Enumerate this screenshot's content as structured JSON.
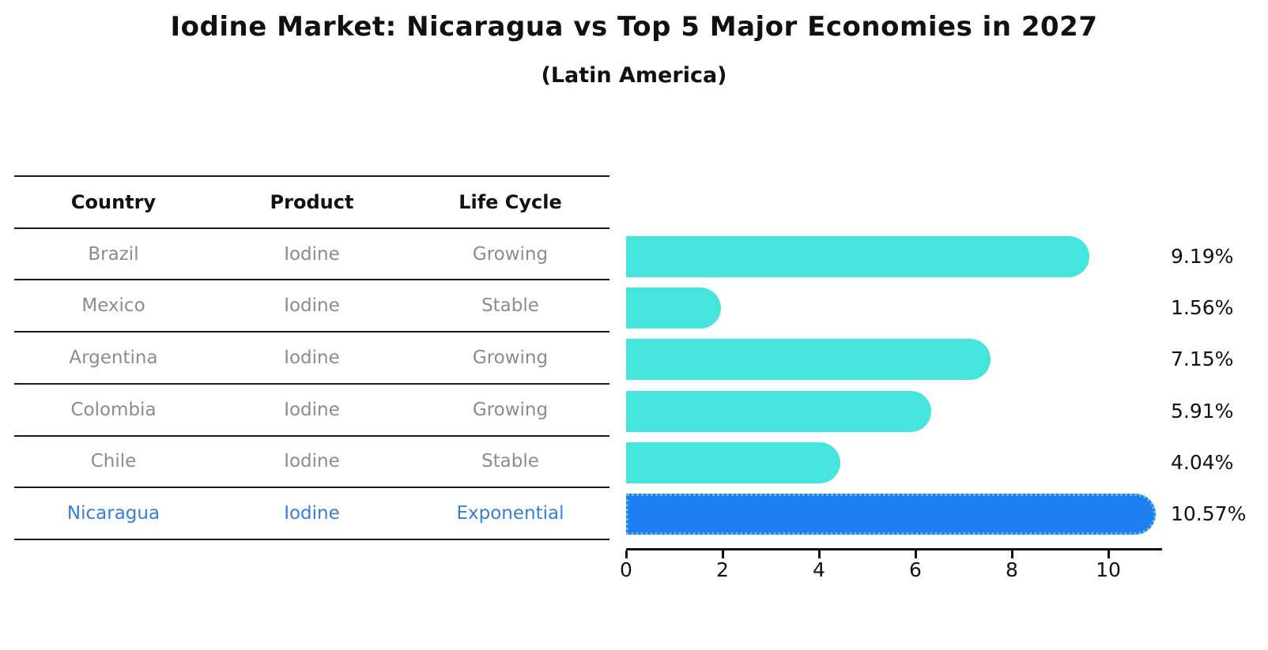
{
  "title": "Iodine Market: Nicaragua vs Top 5 Major Economies in 2027",
  "subtitle": "(Latin America)",
  "table": {
    "headers": [
      "Country",
      "Product",
      "Life Cycle"
    ],
    "rows": [
      {
        "country": "Brazil",
        "product": "Iodine",
        "life_cycle": "Growing"
      },
      {
        "country": "Mexico",
        "product": "Iodine",
        "life_cycle": "Stable"
      },
      {
        "country": "Argentina",
        "product": "Iodine",
        "life_cycle": "Growing"
      },
      {
        "country": "Colombia",
        "product": "Iodine",
        "life_cycle": "Growing"
      },
      {
        "country": "Chile",
        "product": "Iodine",
        "life_cycle": "Stable"
      },
      {
        "country": "Nicaragua",
        "product": "Iodine",
        "life_cycle": "Exponential"
      }
    ],
    "highlighted_row": "Nicaragua"
  },
  "chart_data": {
    "type": "bar",
    "orientation": "horizontal",
    "categories": [
      "Brazil",
      "Mexico",
      "Argentina",
      "Colombia",
      "Chile",
      "Nicaragua"
    ],
    "values": [
      9.19,
      1.56,
      7.15,
      5.91,
      4.04,
      10.57
    ],
    "value_labels": [
      "9.19%",
      "1.56%",
      "7.15%",
      "5.91%",
      "4.04%",
      "10.57%"
    ],
    "x_ticks": [
      0,
      2,
      4,
      6,
      8,
      10
    ],
    "xlim": [
      0,
      11.1
    ],
    "grid": false,
    "legend": "none",
    "title": "Iodine Market: Nicaragua vs Top 5 Major Economies in 2027",
    "xlabel": "",
    "ylabel": "",
    "bar_color": "#45e5de",
    "highlight_color": "#1e7ff0",
    "highlight_edge_color": "#57b8f2",
    "highlight_index": 5
  },
  "colors": {
    "header_text": "#111111",
    "row_text": "#8c8c8c",
    "highlight_text": "#3380d4",
    "axis": "#111111"
  }
}
